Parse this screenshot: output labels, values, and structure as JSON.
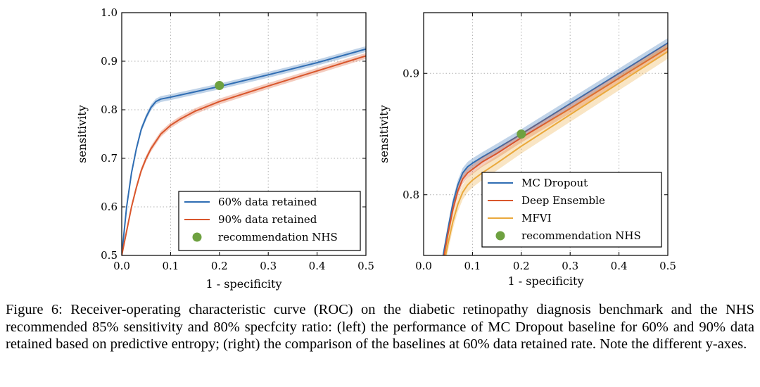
{
  "chart_data": [
    {
      "type": "line",
      "title": "",
      "xlabel": "1 - specificity",
      "ylabel": "sensitivity",
      "xlim": [
        0.0,
        0.5
      ],
      "ylim": [
        0.5,
        1.0
      ],
      "xticks": [
        "0.0",
        "0.1",
        "0.2",
        "0.3",
        "0.4",
        "0.5"
      ],
      "yticks": [
        "0.5",
        "0.6",
        "0.7",
        "0.8",
        "0.9",
        "1.0"
      ],
      "grid": true,
      "legend_position": "lower-right",
      "series": [
        {
          "name": "60% data retained",
          "color": "#2f6db3",
          "band_width": 0.006,
          "x": [
            0.0,
            0.01,
            0.02,
            0.03,
            0.04,
            0.05,
            0.06,
            0.07,
            0.08,
            0.1,
            0.15,
            0.2,
            0.3,
            0.4,
            0.5
          ],
          "y": [
            0.5,
            0.6,
            0.67,
            0.72,
            0.76,
            0.785,
            0.805,
            0.817,
            0.822,
            0.826,
            0.837,
            0.848,
            0.872,
            0.897,
            0.925
          ]
        },
        {
          "name": "90% data retained",
          "color": "#d9562c",
          "band_width": 0.006,
          "x": [
            0.0,
            0.01,
            0.02,
            0.03,
            0.04,
            0.05,
            0.06,
            0.08,
            0.1,
            0.12,
            0.15,
            0.2,
            0.3,
            0.4,
            0.5
          ],
          "y": [
            0.5,
            0.55,
            0.6,
            0.64,
            0.675,
            0.7,
            0.72,
            0.75,
            0.768,
            0.781,
            0.797,
            0.817,
            0.849,
            0.88,
            0.911
          ]
        }
      ],
      "markers": [
        {
          "name": "recommendation NHS",
          "x": 0.2,
          "y": 0.85,
          "color": "#6ea140"
        }
      ]
    },
    {
      "type": "line",
      "title": "",
      "xlabel": "1 - specificity",
      "ylabel": "sensitivity",
      "xlim": [
        0.0,
        0.5
      ],
      "ylim": [
        0.75,
        0.95
      ],
      "xticks": [
        "0.0",
        "0.1",
        "0.2",
        "0.3",
        "0.4",
        "0.5"
      ],
      "yticks": [
        "0.8",
        "0.9"
      ],
      "grid": true,
      "legend_position": "lower-right",
      "series": [
        {
          "name": "MC Dropout",
          "color": "#2f6db3",
          "band_width": 0.004,
          "x": [
            0.04,
            0.05,
            0.06,
            0.07,
            0.08,
            0.09,
            0.1,
            0.12,
            0.15,
            0.2,
            0.3,
            0.4,
            0.5
          ],
          "y": [
            0.75,
            0.772,
            0.793,
            0.808,
            0.818,
            0.823,
            0.826,
            0.831,
            0.838,
            0.85,
            0.875,
            0.9,
            0.925
          ]
        },
        {
          "name": "Deep Ensemble",
          "color": "#d9562c",
          "band_width": 0.004,
          "x": [
            0.042,
            0.05,
            0.06,
            0.07,
            0.08,
            0.09,
            0.1,
            0.12,
            0.15,
            0.2,
            0.3,
            0.4,
            0.5
          ],
          "y": [
            0.75,
            0.768,
            0.788,
            0.803,
            0.813,
            0.818,
            0.821,
            0.827,
            0.834,
            0.847,
            0.871,
            0.896,
            0.921
          ]
        },
        {
          "name": "MFVI",
          "color": "#eaa93c",
          "band_width": 0.006,
          "x": [
            0.045,
            0.05,
            0.06,
            0.07,
            0.08,
            0.09,
            0.1,
            0.12,
            0.15,
            0.2,
            0.3,
            0.4,
            0.5
          ],
          "y": [
            0.75,
            0.76,
            0.778,
            0.792,
            0.802,
            0.808,
            0.812,
            0.818,
            0.826,
            0.84,
            0.866,
            0.892,
            0.918
          ]
        }
      ],
      "markers": [
        {
          "name": "recommendation NHS",
          "x": 0.2,
          "y": 0.85,
          "color": "#6ea140"
        }
      ]
    }
  ],
  "caption": "Figure 6: Receiver-operating characteristic curve (ROC) on the diabetic retinopathy diagnosis benchmark and the NHS recommended 85% sensitivity and 80% specfcity ratio: (left) the performance of MC Dropout baseline for 60% and 90% data retained based on predictive entropy; (right) the comparison of the baselines at 60% data retained rate. Note the different y-axes."
}
